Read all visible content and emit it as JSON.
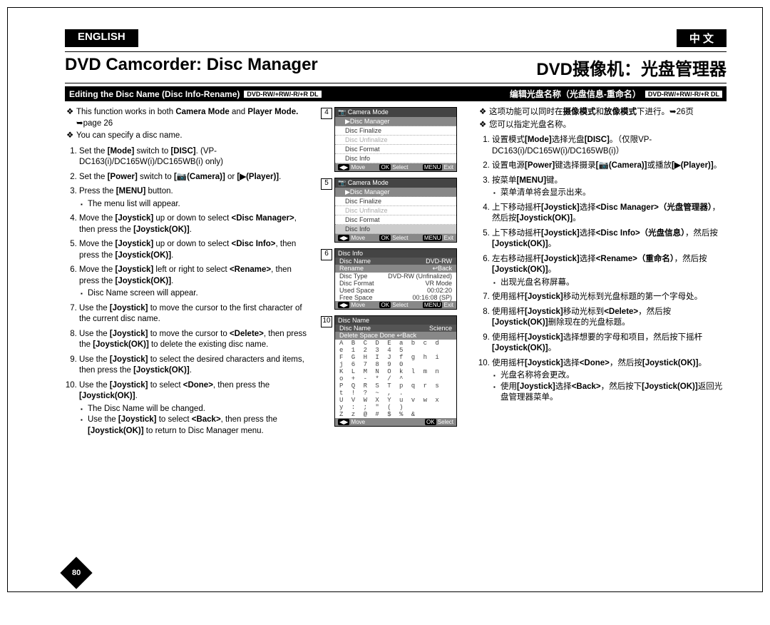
{
  "lang_en": "ENGLISH",
  "lang_cn": "中 文",
  "title_en": "DVD Camcorder: Disc Manager",
  "title_cn": "DVD摄像机：光盘管理器",
  "sub_en": "Editing the Disc Name (Disc Info-Rename)",
  "sub_cn": "编辑光盘名称（光盘信息-重命名）",
  "fmt_badge": "DVD-RW/+RW/-R/+R DL",
  "page_no": "80",
  "en_intro1": "This function works in both ",
  "en_intro1b1": "Camera Mode",
  "en_intro1m": " and ",
  "en_intro1b2": "Player Mode.",
  "en_intro1t": " ➥page 26",
  "en_intro2": "You can specify a disc name.",
  "en_s1a": "Set the ",
  "en_s1b": "[Mode]",
  "en_s1c": " switch to ",
  "en_s1d": "[DISC]",
  "en_s1e": ". (VP-DC163(i)/DC165W(i)/DC165WB(i) only)",
  "en_s2a": "Set the ",
  "en_s2b": "[Power]",
  "en_s2c": " switch to ",
  "en_s2d": "[📷(Camera)]",
  "en_s2e": " or ",
  "en_s2f": "[▶(Player)]",
  "en_s3a": "Press the ",
  "en_s3b": "[MENU]",
  "en_s3c": " button.",
  "en_s3s": "The menu list will appear.",
  "en_s4a": "Move the ",
  "en_s4b": "[Joystick]",
  "en_s4c": " up or down to select ",
  "en_s4d": "<Disc Manager>",
  "en_s4e": ", then press the ",
  "en_s4f": "[Joystick(OK)]",
  "en_s5a": "Move the ",
  "en_s5b": "[Joystick]",
  "en_s5c": " up or down to select ",
  "en_s5d": "<Disc Info>",
  "en_s5e": ", then press the ",
  "en_s5f": "[Joystick(OK)]",
  "en_s6a": "Move the ",
  "en_s6b": "[Joystick]",
  "en_s6c": " left or right to select ",
  "en_s6d": "<Rename>",
  "en_s6e": ", then press the ",
  "en_s6f": "[Joystick(OK)]",
  "en_s6s": "Disc Name screen will appear.",
  "en_s7a": "Use the ",
  "en_s7b": "[Joystick]",
  "en_s7c": " to move the cursor to the first character of the current disc name.",
  "en_s8a": "Use the ",
  "en_s8b": "[Joystick]",
  "en_s8c": " to move the cursor to ",
  "en_s8d": "<Delete>",
  "en_s8e": ", then press the ",
  "en_s8f": "[Joystick(OK)]",
  "en_s8g": " to delete the existing disc name.",
  "en_s9a": "Use the ",
  "en_s9b": "[Joystick]",
  "en_s9c": " to select the desired characters and items, then press the ",
  "en_s9d": "[Joystick(OK)]",
  "en_s10a": "Use the ",
  "en_s10b": "[Joystick]",
  "en_s10c": " to select ",
  "en_s10d": "<Done>",
  "en_s10e": ", then press the ",
  "en_s10f": "[Joystick(OK)]",
  "en_s10s1": "The Disc Name will be changed.",
  "en_s10s2a": "Use the ",
  "en_s10s2b": "[Joystick]",
  "en_s10s2c": " to select ",
  "en_s10s2d": "<Back>",
  "en_s10s2e": ", then press the ",
  "en_s10s2f": "[Joystick(OK)]",
  "en_s10s2g": " to return to Disc Manager menu.",
  "cn_intro1a": "这项功能可以同时在",
  "cn_intro1b": "摄像模式",
  "cn_intro1c": "和",
  "cn_intro1d": "放像模式",
  "cn_intro1e": "下进行。➥26页",
  "cn_intro2": "您可以指定光盘名称。",
  "cn_s1a": "设置模式",
  "cn_s1b": "[Mode]",
  "cn_s1c": "选择光盘",
  "cn_s1d": "[DISC]",
  "cn_s1e": "。（仅限VP-DC163(i)/DC165W(i)/DC165WB(i)）",
  "cn_s2a": "设置电源",
  "cn_s2b": "[Power]",
  "cn_s2c": "键选择摄录",
  "cn_s2d": "[📷(Camera)]",
  "cn_s2e": "或播放",
  "cn_s2f": "[▶(Player)]",
  "cn_s2g": "。",
  "cn_s3a": "按菜单",
  "cn_s3b": "[MENU]",
  "cn_s3c": "键。",
  "cn_s3s": "菜单清单将会显示出来。",
  "cn_s4a": "上下移动摇杆",
  "cn_s4b": "[Joystick]",
  "cn_s4c": "选择",
  "cn_s4d": "<Disc Manager>（光盘管理器）",
  "cn_s4e": "，然后按",
  "cn_s4f": "[Joystick(OK)]",
  "cn_s4g": "。",
  "cn_s5a": "上下移动摇杆",
  "cn_s5b": "[Joystick]",
  "cn_s5c": "选择",
  "cn_s5d": "<Disc Info>（光盘信息）",
  "cn_s5e": "，然后按",
  "cn_s5f": "[Joystick(OK)]",
  "cn_s5g": "。",
  "cn_s6a": "左右移动摇杆",
  "cn_s6b": "[Joystick]",
  "cn_s6c": "选择",
  "cn_s6d": "<Rename>（重命名）",
  "cn_s6e": "，然后按",
  "cn_s6f": "[Joystick(OK)]",
  "cn_s6g": "。",
  "cn_s6s": "出现光盘名称屏幕。",
  "cn_s7a": "使用摇杆",
  "cn_s7b": "[Joystick]",
  "cn_s7c": "移动光标到光盘标题的第一个字母处。",
  "cn_s8a": "使用摇杆",
  "cn_s8b": "[Joystick]",
  "cn_s8c": "移动光标到",
  "cn_s8d": "<Delete>",
  "cn_s8e": "，然后按",
  "cn_s8f": "[Joystick(OK)]",
  "cn_s8g": "删除现在的光盘标题。",
  "cn_s9a": "使用摇杆",
  "cn_s9b": "[Joystick]",
  "cn_s9c": "选择想要的字母和项目，然后按下摇杆",
  "cn_s9d": "[Joystick(OK)]",
  "cn_s9e": "。",
  "cn_s10a": "使用摇杆",
  "cn_s10b": "[Joystick]",
  "cn_s10c": "选择",
  "cn_s10d": "<Done>",
  "cn_s10e": "，然后按",
  "cn_s10f": "[Joystick(OK)]",
  "cn_s10g": "。",
  "cn_s10s1": "光盘名称将会更改。",
  "cn_s10s2a": "使用",
  "cn_s10s2b": "[Joystick]",
  "cn_s10s2c": "选择",
  "cn_s10s2d": "<Back>",
  "cn_s10s2e": "，然后按下",
  "cn_s10s2f": "[Joystick(OK)]",
  "cn_s10s2g": "返回光盘管理器菜单。",
  "scr4_num": "4",
  "scr5_num": "5",
  "scr6_num": "6",
  "scr10_num": "10",
  "scr_hdr_a": "Camera Mode",
  "scr_rows": [
    "▶Disc Manager",
    "Disc Finalize",
    "Disc Unfinalize",
    "Disc Format",
    "Disc Info"
  ],
  "scr_ftr_move": "Move",
  "scr_ftr_sel": "Select",
  "scr_ftr_exit": "Exit",
  "scr_ftr_ok": "OK",
  "scr_ftr_menu": "MENU",
  "scr_ftr_arrows": "◀▶",
  "info_title": "Disc Info",
  "info_r1k": "Disc Name",
  "info_r1v": "DVD-RW",
  "info_r2k": "Rename",
  "info_r2v": "↩Back",
  "info_r3k": "Disc Type",
  "info_r3v": "DVD-RW (Unfinalized)",
  "info_r4k": "Disc Format",
  "info_r4v": "VR Mode",
  "info_r5k": "Used Space",
  "info_r5v": "00:02:20",
  "info_r6k": "Free Space",
  "info_r6v": "00:16:08 (SP)",
  "name_title": "Disc Name",
  "name_r1k": "Disc Name",
  "name_r1v": "Science",
  "name_btns": "Delete  Space  Done  ↩Back",
  "chars1": "A B C D E  a b c d e  1 2 3 4 5",
  "chars2": "F G H I J  f g h i j  6 7 8 9 0",
  "chars3": "K L M N O  k l m n o  + - * / ^",
  "chars4": "P Q R S T  p q r s t  ! ? ~ , .",
  "chars5": "U V W X Y  u v w x y  : ; \" ( )",
  "chars6": "Z          z          @ # $ % &"
}
